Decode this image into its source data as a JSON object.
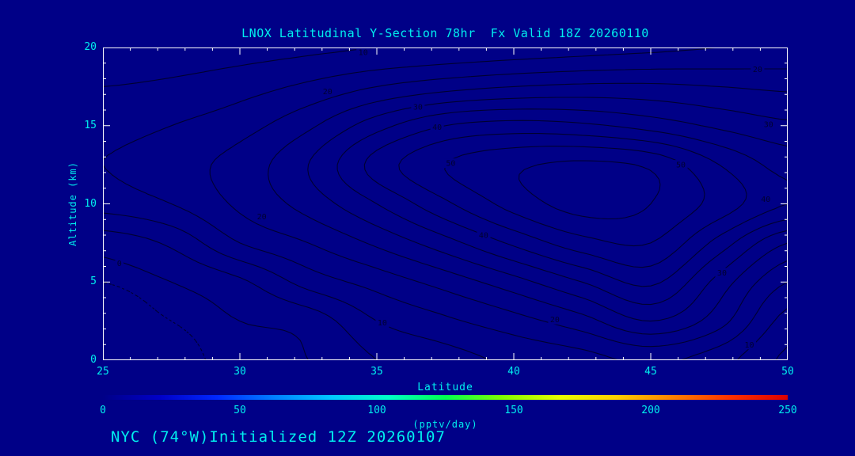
{
  "colors": {
    "background": "#000087",
    "cyan": "#00EFEF",
    "axis": "#FFFFFF",
    "contour": "#000030"
  },
  "footer": "NYC (74°W)Initialized 12Z 20260107",
  "chart_data": {
    "type": "contour",
    "title": "LNOX Latitudinal Y-Section 78hr  Fx Valid 18Z 20260110",
    "xlabel": "Latitude",
    "ylabel": "Altitude (km)",
    "xlim": [
      25,
      50
    ],
    "ylim": [
      0,
      20
    ],
    "xticks": [
      25,
      30,
      35,
      40,
      45,
      50
    ],
    "yticks": [
      0,
      5,
      10,
      15,
      20
    ],
    "levels": [
      -2,
      0,
      5,
      10,
      15,
      20,
      25,
      30,
      35,
      40,
      45,
      50,
      55
    ],
    "dashed_below": 0,
    "grid": {
      "lat": [
        25,
        27.5,
        30,
        32.5,
        35,
        37.5,
        40,
        42.5,
        45,
        47.5,
        50
      ],
      "alt": [
        0,
        2.5,
        5,
        7.5,
        10,
        12.5,
        15,
        17.5,
        20
      ],
      "values": [
        [
          -4,
          -3,
          -1,
          0,
          5,
          8,
          11,
          13,
          16,
          12,
          4
        ],
        [
          -3,
          -2,
          0,
          2,
          10,
          14,
          18,
          23,
          30,
          22,
          8
        ],
        [
          -2,
          0,
          4,
          12,
          17,
          22,
          28,
          35,
          41,
          28,
          15
        ],
        [
          2,
          6,
          15,
          20,
          26,
          33,
          41,
          48,
          50,
          38,
          25
        ],
        [
          12,
          15,
          21,
          27,
          35,
          44,
          52,
          57,
          55,
          48,
          40
        ],
        [
          15,
          18,
          22,
          30,
          42,
          50,
          54,
          56,
          54,
          45,
          38
        ],
        [
          13,
          15,
          18,
          24,
          33,
          40,
          42,
          41,
          38,
          34,
          31
        ],
        [
          10,
          11,
          13,
          16,
          20,
          23,
          25,
          26,
          26,
          25,
          24
        ],
        [
          6,
          7,
          8,
          9,
          10,
          11,
          12,
          13,
          14,
          15,
          16
        ]
      ]
    },
    "contour_labels": [
      {
        "v": 10,
        "lat": 34.5,
        "alt": 19.7
      },
      {
        "v": 20,
        "lat": 33.2,
        "alt": 17.2
      },
      {
        "v": 30,
        "lat": 36.5,
        "alt": 16.2
      },
      {
        "v": 40,
        "lat": 37.2,
        "alt": 14.9
      },
      {
        "v": 50,
        "lat": 37.7,
        "alt": 12.6
      },
      {
        "v": 50,
        "lat": 46.1,
        "alt": 12.5
      },
      {
        "v": 40,
        "lat": 38.9,
        "alt": 8.0
      },
      {
        "v": 30,
        "lat": 49.3,
        "alt": 15.1
      },
      {
        "v": 40,
        "lat": 49.2,
        "alt": 10.3
      },
      {
        "v": 20,
        "lat": 48.9,
        "alt": 18.6
      },
      {
        "v": 0,
        "lat": 25.6,
        "alt": 6.2
      },
      {
        "v": 20,
        "lat": 30.8,
        "alt": 9.2
      },
      {
        "v": 10,
        "lat": 35.2,
        "alt": 2.4
      },
      {
        "v": 20,
        "lat": 41.5,
        "alt": 2.6
      },
      {
        "v": 30,
        "lat": 47.6,
        "alt": 5.6
      },
      {
        "v": 10,
        "lat": 48.6,
        "alt": 1.0
      }
    ],
    "colorbar": {
      "min": 0,
      "max": 250,
      "ticks": [
        0,
        50,
        100,
        150,
        200,
        250
      ],
      "label": "(pptv/day)",
      "colors": [
        "#000087",
        "#0000C8",
        "#0028FF",
        "#0080FF",
        "#00C8FF",
        "#00FFC8",
        "#00FF50",
        "#80FF00",
        "#E8FF00",
        "#FFD000",
        "#FF8000",
        "#FF3000",
        "#DC0000"
      ]
    }
  }
}
